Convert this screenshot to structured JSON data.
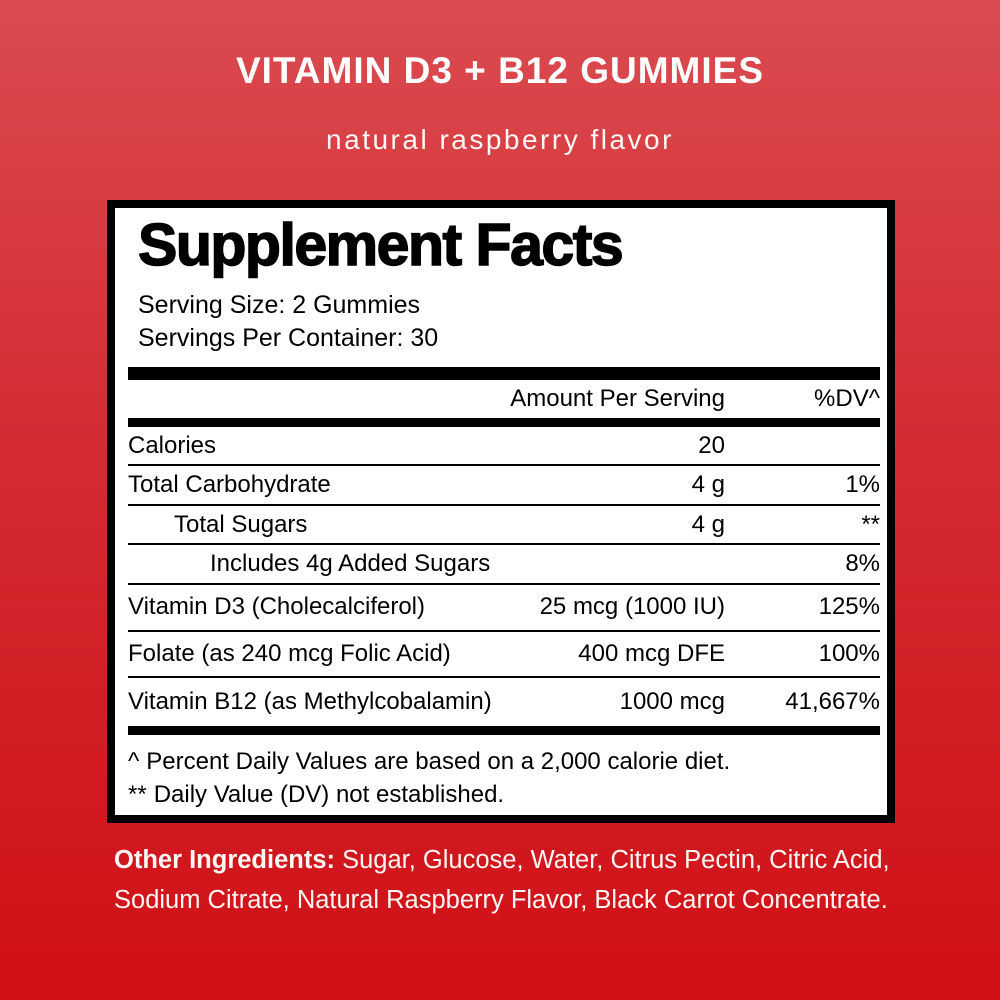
{
  "header": {
    "title": "VITAMIN D3 + B12 GUMMIES",
    "subtitle": "natural raspberry flavor"
  },
  "colors": {
    "background_top": "#da4b50",
    "background_bottom": "#d01016",
    "panel_background": "#ffffff",
    "panel_border": "#000000",
    "panel_text": "#000000",
    "light_text": "#ffffff"
  },
  "panel": {
    "title": "Supplement Facts",
    "serving_size": "Serving Size: 2 Gummies",
    "servings_per_container": "Servings Per Container: 30",
    "columns": {
      "amount": "Amount Per Serving",
      "dv": "%DV^"
    },
    "rows": [
      {
        "name": "Calories",
        "amount": "20",
        "dv": ""
      },
      {
        "name": "Total Carbohydrate",
        "amount": "4 g",
        "dv": "1%"
      },
      {
        "name": "Total Sugars",
        "amount": "4 g",
        "dv": "**"
      },
      {
        "name": "Includes 4g Added Sugars",
        "amount": "",
        "dv": "8%"
      },
      {
        "name": "Vitamin D3 (Cholecalciferol)",
        "amount": "25 mcg (1000 IU)",
        "dv": "125%"
      },
      {
        "name": "Folate (as 240 mcg Folic Acid)",
        "amount": "400 mcg DFE",
        "dv": "100%"
      },
      {
        "name": "Vitamin B12 (as Methylcobalamin)",
        "amount": "1000 mcg",
        "dv": "41,667%"
      }
    ],
    "footnotes": [
      {
        "marker": "^",
        "text": "Percent Daily Values are based on a 2,000 calorie diet."
      },
      {
        "marker": "**",
        "text": "Daily Value (DV) not established."
      }
    ]
  },
  "other_ingredients": {
    "label": "Other Ingredients:",
    "line1": " Sugar, Glucose, Water, Citrus Pectin, Citric Acid,",
    "line2": "Sodium Citrate, Natural Raspberry Flavor, Black Carrot Concentrate."
  }
}
